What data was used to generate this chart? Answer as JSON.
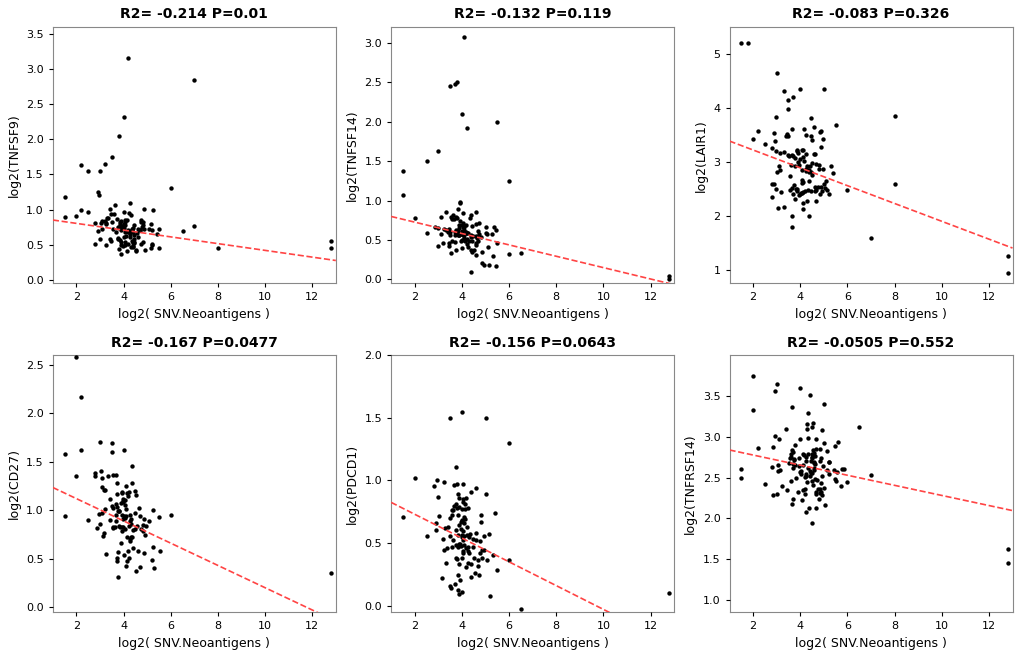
{
  "panels": [
    {
      "title": "R2= -0.214 P=0.01",
      "ylabel": "log2(TNFSF9)",
      "xlabel": "log2( SNV.Neoantigens )",
      "xlim": [
        1,
        13
      ],
      "ylim": [
        -0.05,
        3.6
      ],
      "yticks": [
        0.0,
        0.5,
        1.0,
        1.5,
        2.0,
        2.5,
        3.0,
        3.5
      ],
      "xticks": [
        2,
        4,
        6,
        8,
        10,
        12
      ],
      "slope": -0.048,
      "intercept": 0.9,
      "x_line_start": 1.0,
      "x_line_end": 13.0
    },
    {
      "title": "R2= -0.132 P=0.119",
      "ylabel": "log2(TNFSF14)",
      "xlabel": "log2( SNV.Neoantigens )",
      "xlim": [
        1,
        13
      ],
      "ylim": [
        -0.05,
        3.2
      ],
      "yticks": [
        0.0,
        0.5,
        1.0,
        1.5,
        2.0,
        2.5,
        3.0
      ],
      "xticks": [
        2,
        4,
        6,
        8,
        10,
        12
      ],
      "slope": -0.072,
      "intercept": 0.87,
      "x_line_start": 1.0,
      "x_line_end": 13.0
    },
    {
      "title": "R2= -0.083 P=0.326",
      "ylabel": "log2(LAIR1)",
      "xlabel": "log2( SNV.Neoantigens )",
      "xlim": [
        1,
        13
      ],
      "ylim": [
        0.75,
        5.5
      ],
      "yticks": [
        1,
        2,
        3,
        4,
        5
      ],
      "xticks": [
        2,
        4,
        6,
        8,
        10,
        12
      ],
      "slope": -0.165,
      "intercept": 3.55,
      "x_line_start": 1.0,
      "x_line_end": 13.0
    },
    {
      "title": "R2= -0.167 P=0.0477",
      "ylabel": "log2(CD27)",
      "xlabel": "log2( SNV.Neoantigens )",
      "xlim": [
        1,
        13
      ],
      "ylim": [
        -0.05,
        2.6
      ],
      "yticks": [
        0.0,
        0.5,
        1.0,
        1.5,
        2.0,
        2.5
      ],
      "xticks": [
        2,
        4,
        6,
        8,
        10,
        12
      ],
      "slope": -0.115,
      "intercept": 1.35,
      "x_line_start": 1.0,
      "x_line_end": 13.0
    },
    {
      "title": "R2= -0.156 P=0.0643",
      "ylabel": "log2(PDCD1)",
      "xlabel": "log2( SNV.Neoantigens )",
      "xlim": [
        1,
        13
      ],
      "ylim": [
        -0.05,
        2.0
      ],
      "yticks": [
        0.0,
        0.5,
        1.0,
        1.5,
        2.0
      ],
      "xticks": [
        2,
        4,
        6,
        8,
        10,
        12
      ],
      "slope": -0.095,
      "intercept": 0.92,
      "x_line_start": 1.0,
      "x_line_end": 13.0
    },
    {
      "title": "R2= -0.0505 P=0.552",
      "ylabel": "log2(TNFRSF14)",
      "xlabel": "log2( SNV.Neoantigens )",
      "xlim": [
        1,
        13
      ],
      "ylim": [
        0.85,
        4.0
      ],
      "yticks": [
        1.0,
        1.5,
        2.0,
        2.5,
        3.0,
        3.5
      ],
      "xticks": [
        2,
        4,
        6,
        8,
        10,
        12
      ],
      "slope": -0.062,
      "intercept": 2.9,
      "x_line_start": 1.0,
      "x_line_end": 13.0
    }
  ],
  "scatter_color": "#000000",
  "line_color": "#FF4444",
  "dot_size": 10,
  "title_fontsize": 10,
  "label_fontsize": 9,
  "tick_fontsize": 8,
  "background_color": "#ffffff"
}
